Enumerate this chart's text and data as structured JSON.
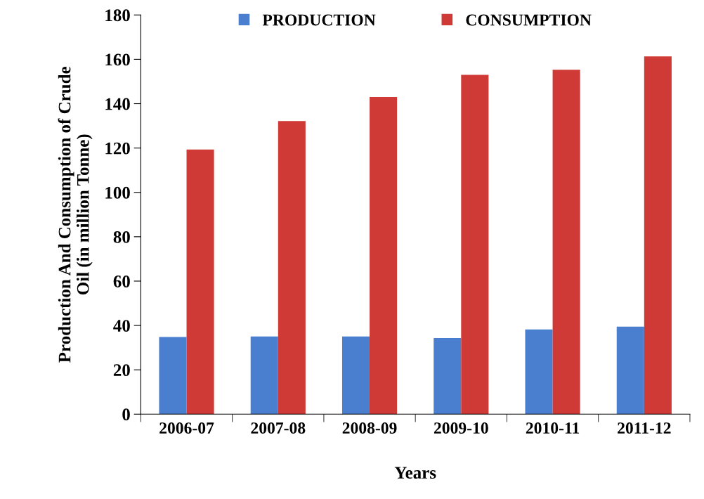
{
  "chart_data": {
    "type": "bar",
    "xlabel": "Years",
    "ylabel": "Production And Consumption of Crude\nOil (in million Tonne)",
    "categories": [
      "2006-07",
      "2007-08",
      "2008-09",
      "2009-10",
      "2010-11",
      "2011-12"
    ],
    "series": [
      {
        "name": "PRODUCTION",
        "color": "#4a7fd0",
        "values": [
          34.8,
          35,
          35,
          34.3,
          38.2,
          39.5
        ]
      },
      {
        "name": "CONSUMPTION",
        "color": "#d03a36",
        "values": [
          119.3,
          132.2,
          143,
          153,
          155.3,
          161.3
        ]
      }
    ],
    "ylim": [
      0,
      180
    ],
    "yticks": [
      0,
      20,
      40,
      60,
      80,
      100,
      120,
      140,
      160,
      180
    ],
    "grid": false,
    "legend": "top"
  }
}
